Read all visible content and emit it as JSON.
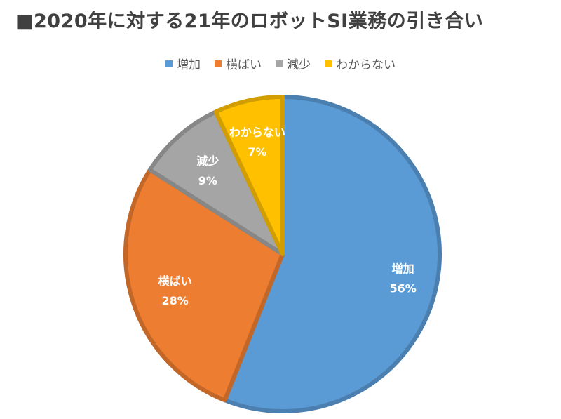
{
  "title": "■2020年に対する21年のロボットSI業務の引き合い",
  "chart_data": {
    "type": "pie",
    "title": "■2020年に対する21年のロボットSI業務の引き合い",
    "legend_position": "top",
    "slices": [
      {
        "label": "増加",
        "value": 56,
        "display": "56%",
        "color": "#5B9BD5"
      },
      {
        "label": "横ばい",
        "value": 28,
        "display": "28%",
        "color": "#ED7D31"
      },
      {
        "label": "減少",
        "value": 9,
        "display": "9%",
        "color": "#A5A5A5"
      },
      {
        "label": "わからない",
        "value": 7,
        "display": "7%",
        "color": "#FFC000"
      }
    ]
  }
}
